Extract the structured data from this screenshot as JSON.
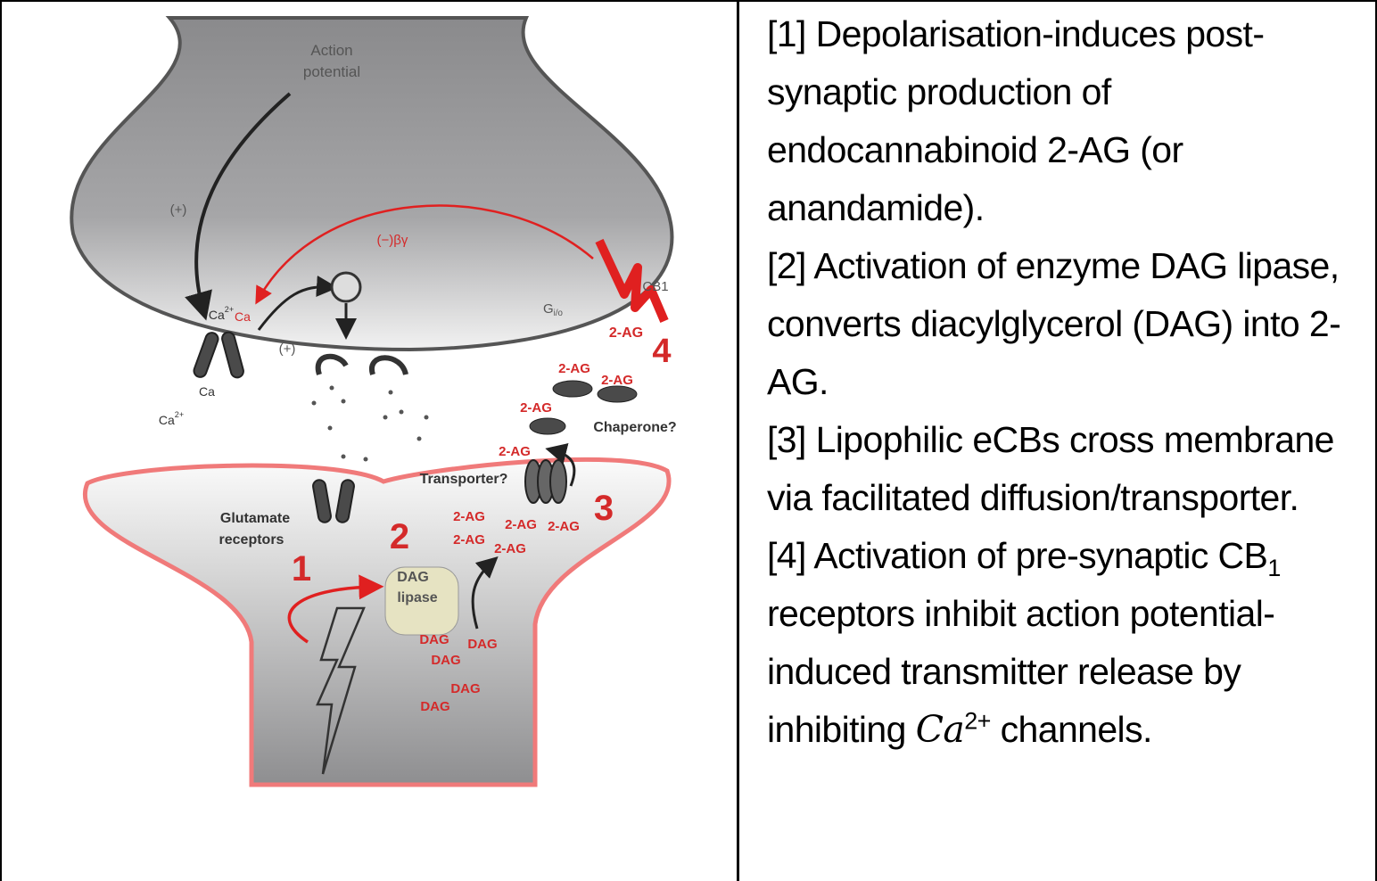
{
  "diagram": {
    "labels": [
      {
        "text": "Action"
      },
      {
        "text": "potential"
      },
      {
        "text": "(+)"
      },
      {
        "text": "(−)βγ"
      },
      {
        "text": "Ca",
        "sup": "2+"
      },
      {
        "text": "Ca"
      },
      {
        "text": "(+)"
      },
      {
        "text": "Ca"
      },
      {
        "text": "Ca",
        "sup": "2+"
      },
      {
        "text": "CB1"
      },
      {
        "text": "G",
        "sub": "i/o"
      },
      {
        "text": "2-AG"
      },
      {
        "text": "4"
      },
      {
        "text": "2-AG"
      },
      {
        "text": "2-AG"
      },
      {
        "text": "2-AG"
      },
      {
        "text": "Chaperone?"
      },
      {
        "text": "2-AG"
      },
      {
        "text": "Transporter?"
      },
      {
        "text": "3"
      },
      {
        "text": "Glutamate"
      },
      {
        "text": "receptors"
      },
      {
        "text": "2"
      },
      {
        "text": "2-AG"
      },
      {
        "text": "2-AG"
      },
      {
        "text": "2-AG"
      },
      {
        "text": "2-AG"
      },
      {
        "text": "2-AG"
      },
      {
        "text": "1"
      },
      {
        "text": "DAG"
      },
      {
        "text": "lipase"
      },
      {
        "text": "DAG"
      },
      {
        "text": "DAG"
      },
      {
        "text": "DAG"
      },
      {
        "text": "DAG"
      },
      {
        "text": "DAG"
      }
    ]
  },
  "notes": [
    {
      "text": "[1] Depolarisation-induces post-synaptic production of endocannabinoid 2-AG (or anandamide)."
    },
    {
      "text": "[2] Activation of enzyme DAG lipase, converts diacylglycerol (DAG) into 2-AG."
    },
    {
      "text": "[3] Lipophilic eCBs cross membrane via facilitated diffusion/transporter."
    },
    {
      "before": "[4] Activation of pre-synaptic CB",
      "sub": "1",
      "middle": " receptors inhibit action potential-induced transmitter release by inhibiting ",
      "math": "Ca",
      "sup": "2+",
      "after": " channels."
    }
  ]
}
